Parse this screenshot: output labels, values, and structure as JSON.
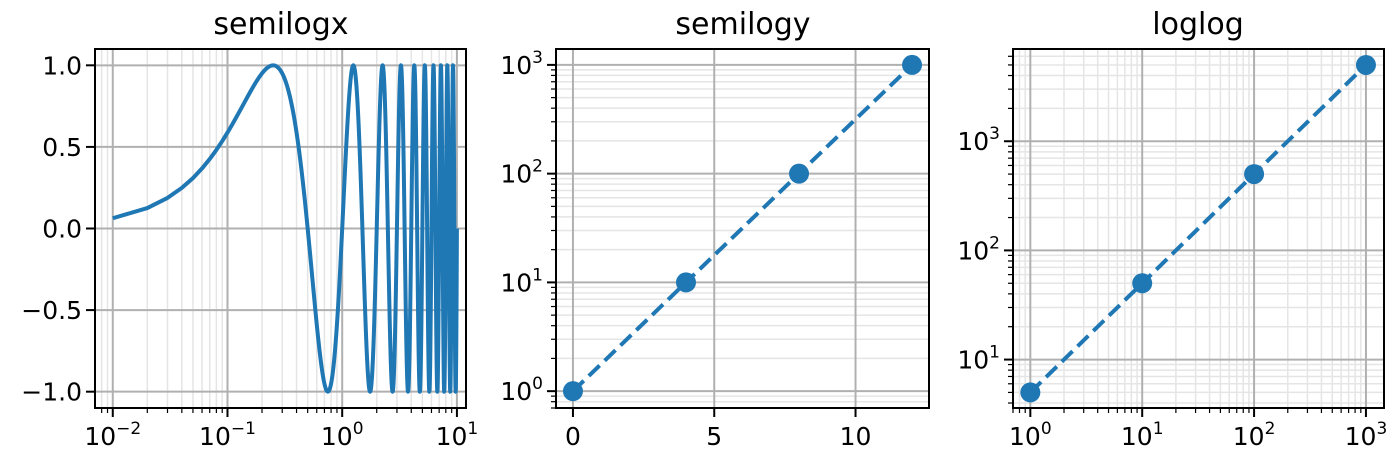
{
  "chart_data": [
    {
      "type": "line",
      "title": "semilogx",
      "xscale": "log",
      "yscale": "linear",
      "function": "sin(2*pi*x)",
      "xlim": [
        0.007,
        12
      ],
      "ylim": [
        -1.1,
        1.1
      ],
      "x_ticks": [
        "10⁻²",
        "10⁻¹",
        "10⁰",
        "10¹"
      ],
      "y_ticks": [
        "1.0",
        "0.5",
        "0.0",
        "−0.5",
        "−1.0"
      ],
      "x_tick_values": [
        0.01,
        0.1,
        1,
        10
      ],
      "y_tick_values": [
        1.0,
        0.5,
        0.0,
        -0.5,
        -1.0
      ],
      "x_range": [
        0.01,
        10
      ],
      "x_step": 0.01,
      "grid": true,
      "color": "#1f77b4"
    },
    {
      "type": "line",
      "title": "semilogy",
      "xscale": "linear",
      "yscale": "log",
      "line_style": "dashed",
      "markers": true,
      "x": [
        0,
        4,
        8,
        12
      ],
      "y": [
        1,
        10,
        100,
        1000
      ],
      "xlim": [
        -0.6,
        12.6
      ],
      "ylim": [
        0.7,
        1400
      ],
      "x_ticks": [
        "0",
        "5",
        "10"
      ],
      "x_tick_values": [
        0,
        5,
        10
      ],
      "y_ticks": [
        "10⁰",
        "10¹",
        "10²",
        "10³"
      ],
      "y_tick_values": [
        1,
        10,
        100,
        1000
      ],
      "grid": true,
      "color": "#1f77b4"
    },
    {
      "type": "line",
      "title": "loglog",
      "xscale": "log",
      "yscale": "log",
      "line_style": "dashed",
      "markers": true,
      "x": [
        1,
        10,
        100,
        1000
      ],
      "y": [
        5,
        50,
        500,
        5000
      ],
      "xlim": [
        0.7,
        1450
      ],
      "ylim": [
        3.6,
        7000
      ],
      "x_ticks": [
        "10⁰",
        "10¹",
        "10²",
        "10³"
      ],
      "x_tick_values": [
        1,
        10,
        100,
        1000
      ],
      "y_ticks": [
        "10¹",
        "10²",
        "10³"
      ],
      "y_tick_values": [
        10,
        100,
        1000
      ],
      "grid": true,
      "color": "#1f77b4"
    }
  ]
}
